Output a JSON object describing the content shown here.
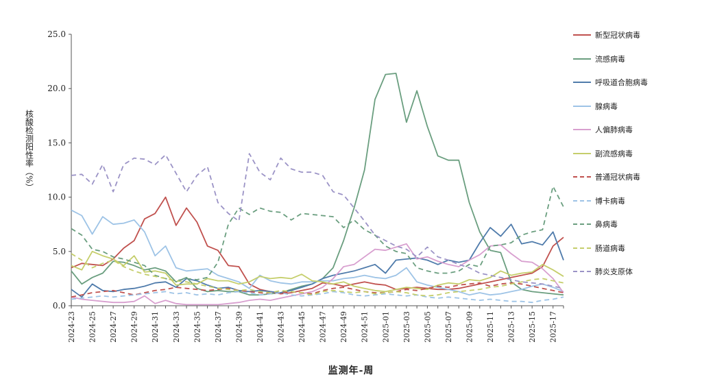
{
  "chart_data": {
    "type": "line",
    "xlabel": "监测年-周",
    "ylabel": "核酸检测阳性率（%）",
    "ylim": [
      0,
      25
    ],
    "yticks": [
      "0.0",
      "5.0",
      "10.0",
      "15.0",
      "20.0",
      "25.0"
    ],
    "x": [
      "2024-23",
      "2024-24",
      "2024-25",
      "2024-26",
      "2024-27",
      "2024-28",
      "2024-29",
      "2024-30",
      "2024-31",
      "2024-32",
      "2024-33",
      "2024-34",
      "2024-35",
      "2024-36",
      "2024-37",
      "2024-38",
      "2024-39",
      "2024-40",
      "2024-41",
      "2024-42",
      "2024-43",
      "2024-44",
      "2024-45",
      "2024-46",
      "2024-47",
      "2024-48",
      "2024-49",
      "2024-50",
      "2024-51",
      "2024-52",
      "2025-01",
      "2025-02",
      "2025-03",
      "2025-04",
      "2025-05",
      "2025-06",
      "2025-07",
      "2025-08",
      "2025-09",
      "2025-10",
      "2025-11",
      "2025-12",
      "2025-13",
      "2025-14",
      "2025-15",
      "2025-16",
      "2025-17",
      "2025-18"
    ],
    "xtick_labels": [
      "2024-23",
      "2024-25",
      "2024-27",
      "2024-29",
      "2024-31",
      "2024-33",
      "2024-35",
      "2024-37",
      "2024-39",
      "2024-41",
      "2024-43",
      "2024-45",
      "2024-47",
      "2024-49",
      "2024-51",
      "2025-01",
      "2025-03",
      "2025-05",
      "2025-07",
      "2025-09",
      "2025-11",
      "2025-13",
      "2025-15",
      "2025-17"
    ],
    "legend_position": "right",
    "series": [
      {
        "name": "新型冠状病毒",
        "color": "#c0504d",
        "dash": "solid",
        "values": [
          3.5,
          3.9,
          3.8,
          3.7,
          4.3,
          5.3,
          6.0,
          8.0,
          8.5,
          10.0,
          7.4,
          9.0,
          7.7,
          5.5,
          5.1,
          3.7,
          3.6,
          2.0,
          1.5,
          1.3,
          1.1,
          1.2,
          1.4,
          1.6,
          2.1,
          2.0,
          1.8,
          2.0,
          2.2,
          2.0,
          1.9,
          1.5,
          1.6,
          1.7,
          1.6,
          1.5,
          1.5,
          1.6,
          1.8,
          2.0,
          2.2,
          2.4,
          2.6,
          2.8,
          3.0,
          3.6,
          5.5,
          6.3
        ]
      },
      {
        "name": "流感病毒",
        "color": "#6a9e7f",
        "dash": "solid",
        "values": [
          3.2,
          2.0,
          2.6,
          3.0,
          4.1,
          4.0,
          3.7,
          3.3,
          3.5,
          3.2,
          2.2,
          2.6,
          1.6,
          1.3,
          1.4,
          1.3,
          1.3,
          1.0,
          1.0,
          1.1,
          1.2,
          1.5,
          1.8,
          2.0,
          2.5,
          3.5,
          6.0,
          9.0,
          12.5,
          19.0,
          21.3,
          21.4,
          16.9,
          19.8,
          16.5,
          13.8,
          13.4,
          13.4,
          9.5,
          6.8,
          5.1,
          4.9,
          2.2,
          1.5,
          1.3,
          1.2,
          1.1,
          1.0
        ]
      },
      {
        "name": "呼吸道合胞病毒",
        "color": "#4f7bab",
        "dash": "solid",
        "values": [
          1.5,
          0.8,
          2.0,
          1.4,
          1.3,
          1.5,
          1.6,
          1.8,
          2.1,
          2.2,
          1.7,
          2.5,
          2.3,
          1.9,
          1.6,
          1.7,
          1.4,
          1.3,
          1.4,
          1.3,
          1.2,
          1.4,
          1.7,
          2.0,
          2.5,
          2.8,
          3.0,
          3.2,
          3.5,
          3.8,
          3.0,
          4.2,
          4.3,
          4.4,
          4.2,
          3.8,
          4.2,
          4.0,
          4.2,
          5.8,
          7.2,
          6.4,
          7.5,
          5.7,
          5.9,
          5.6,
          6.8,
          4.2
        ]
      },
      {
        "name": "腺病毒",
        "color": "#9dc3e6",
        "dash": "solid",
        "values": [
          8.8,
          8.3,
          6.6,
          8.2,
          7.5,
          7.6,
          7.9,
          6.8,
          4.6,
          5.5,
          3.5,
          3.2,
          3.3,
          3.4,
          2.8,
          2.5,
          2.2,
          1.6,
          2.8,
          2.3,
          2.1,
          2.0,
          2.2,
          2.2,
          2.3,
          2.3,
          2.5,
          2.6,
          2.8,
          2.6,
          2.5,
          2.8,
          3.5,
          2.2,
          1.9,
          1.7,
          1.5,
          1.3,
          1.0,
          1.2,
          1.0,
          1.1,
          1.3,
          1.5,
          1.8,
          2.0,
          1.7,
          1.3
        ]
      },
      {
        "name": "人偏肺病毒",
        "color": "#d89fcf",
        "dash": "solid",
        "values": [
          0.8,
          0.6,
          0.5,
          0.4,
          0.3,
          0.3,
          0.4,
          0.9,
          0.2,
          0.5,
          0.2,
          0.1,
          0.1,
          0.1,
          0.1,
          0.2,
          0.3,
          0.5,
          0.6,
          0.5,
          0.7,
          0.9,
          1.1,
          1.3,
          1.7,
          2.5,
          3.6,
          3.8,
          4.5,
          5.2,
          5.1,
          5.4,
          5.7,
          4.3,
          4.5,
          4.1,
          3.8,
          3.6,
          4.2,
          4.7,
          5.5,
          5.6,
          4.8,
          4.1,
          4.0,
          3.4,
          2.5,
          1.2
        ]
      },
      {
        "name": "副流感病毒",
        "color": "#c5ce6b",
        "dash": "solid",
        "values": [
          3.7,
          3.3,
          5.0,
          4.6,
          4.3,
          3.7,
          4.6,
          3.1,
          3.2,
          3.0,
          1.9,
          2.0,
          2.0,
          2.5,
          2.3,
          2.3,
          2.0,
          2.2,
          2.7,
          2.5,
          2.6,
          2.5,
          2.9,
          2.3,
          2.2,
          2.0,
          2.2,
          1.8,
          1.6,
          1.4,
          1.3,
          1.5,
          1.7,
          1.6,
          1.5,
          1.9,
          2.1,
          2.0,
          2.4,
          2.3,
          2.6,
          3.2,
          2.8,
          3.0,
          3.1,
          3.8,
          3.3,
          2.7
        ]
      },
      {
        "name": "普通冠状病毒",
        "color": "#c0504d",
        "dash": "dashed",
        "values": [
          0.8,
          1.0,
          1.2,
          1.3,
          1.4,
          1.2,
          1.0,
          1.2,
          1.4,
          1.5,
          1.7,
          1.6,
          1.5,
          1.4,
          1.5,
          1.6,
          1.4,
          1.3,
          1.2,
          1.1,
          1.2,
          1.3,
          1.2,
          1.1,
          1.4,
          1.6,
          1.7,
          1.5,
          1.3,
          1.2,
          1.2,
          1.3,
          1.5,
          1.4,
          1.6,
          1.8,
          1.7,
          1.9,
          2.0,
          2.1,
          1.8,
          2.0,
          2.1,
          2.0,
          1.8,
          1.6,
          1.4,
          1.2
        ]
      },
      {
        "name": "博卡病毒",
        "color": "#9dc3e6",
        "dash": "dashed",
        "values": [
          0.6,
          0.7,
          0.8,
          0.9,
          0.8,
          0.9,
          1.0,
          1.1,
          1.2,
          1.3,
          1.1,
          1.2,
          1.0,
          1.1,
          1.0,
          1.2,
          1.3,
          1.2,
          1.0,
          1.1,
          1.2,
          1.0,
          0.9,
          1.0,
          1.1,
          1.3,
          1.2,
          1.0,
          0.9,
          1.0,
          1.1,
          1.0,
          0.9,
          1.0,
          0.8,
          0.7,
          0.8,
          0.7,
          0.6,
          0.5,
          0.6,
          0.5,
          0.4,
          0.4,
          0.3,
          0.5,
          0.6,
          0.8
        ]
      },
      {
        "name": "鼻病毒",
        "color": "#6a9e7f",
        "dash": "dashed",
        "values": [
          7.1,
          6.5,
          5.2,
          5.0,
          4.5,
          4.3,
          4.0,
          3.7,
          2.8,
          2.5,
          2.3,
          2.5,
          2.4,
          2.6,
          4.0,
          7.5,
          9.0,
          8.4,
          9.0,
          8.7,
          8.6,
          7.9,
          8.5,
          8.4,
          8.3,
          8.2,
          7.2,
          7.9,
          7.0,
          6.5,
          5.5,
          5.0,
          4.8,
          3.5,
          3.2,
          3.0,
          3.0,
          3.2,
          3.8,
          3.6,
          5.5,
          5.6,
          5.8,
          6.5,
          6.8,
          7.0,
          11.0,
          9.1
        ]
      },
      {
        "name": "肠道病毒",
        "color": "#c5ce6b",
        "dash": "dashed",
        "values": [
          4.8,
          4.2,
          3.5,
          3.9,
          4.2,
          3.6,
          3.2,
          2.9,
          2.7,
          2.5,
          2.3,
          2.2,
          2.0,
          1.8,
          1.6,
          1.5,
          1.4,
          1.5,
          1.3,
          1.2,
          1.4,
          1.3,
          1.2,
          1.0,
          1.3,
          1.4,
          1.3,
          1.2,
          1.3,
          1.1,
          1.2,
          1.3,
          1.2,
          1.0,
          0.9,
          1.0,
          1.2,
          1.3,
          1.4,
          1.5,
          1.7,
          1.8,
          2.0,
          2.2,
          2.4,
          2.5,
          2.3,
          2.1
        ]
      },
      {
        "name": "肺炎支原体",
        "color": "#9b93c6",
        "dash": "dashed",
        "values": [
          12.0,
          12.1,
          11.2,
          13.0,
          10.5,
          13.0,
          13.6,
          13.5,
          13.0,
          13.9,
          12.2,
          10.5,
          12.0,
          12.8,
          9.5,
          8.5,
          7.8,
          14.0,
          12.3,
          11.6,
          13.6,
          12.6,
          12.3,
          12.3,
          12.0,
          10.5,
          10.2,
          9.0,
          7.8,
          6.5,
          6.0,
          5.5,
          5.2,
          4.5,
          5.4,
          4.5,
          4.2,
          3.8,
          3.5,
          3.0,
          2.8,
          2.6,
          2.4,
          2.2,
          2.1,
          2.0,
          1.8,
          1.6
        ]
      }
    ]
  }
}
